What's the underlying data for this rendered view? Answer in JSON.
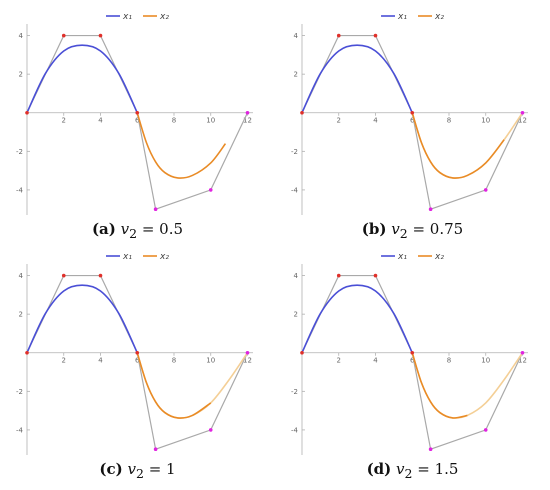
{
  "legend": {
    "x1": "x₁",
    "x2": "x₂"
  },
  "colors": {
    "x1": "#4a4fd6",
    "x2": "#e98b26",
    "x2_faded": "#f4cf96",
    "polygon": "#a9a9a9",
    "red_point": "#e0302a",
    "magenta_point": "#e024e0"
  },
  "captions": [
    {
      "label": "(a)",
      "var": "v",
      "sub": "2",
      "rhs": " = 0.5"
    },
    {
      "label": "(b)",
      "var": "v",
      "sub": "2",
      "rhs": " = 0.75"
    },
    {
      "label": "(c)",
      "var": "v",
      "sub": "2",
      "rhs": " = 1"
    },
    {
      "label": "(d)",
      "var": "v",
      "sub": "2",
      "rhs": " = 1.5"
    }
  ],
  "chart_data": [
    {
      "type": "line",
      "panel": "a",
      "v2": 0.5,
      "xlim": [
        0,
        12.3
      ],
      "ylim": [
        -5.3,
        4.6
      ],
      "xticks": [
        2,
        4,
        6,
        8,
        10,
        12
      ],
      "yticks": [
        -4,
        -2,
        2,
        4
      ],
      "control_polygon_1": [
        [
          0,
          0
        ],
        [
          2,
          4
        ],
        [
          4,
          4
        ],
        [
          6,
          0
        ]
      ],
      "control_polygon_2": [
        [
          6,
          0
        ],
        [
          7,
          -5
        ],
        [
          10,
          -4
        ],
        [
          12,
          0
        ]
      ],
      "series": [
        {
          "name": "x₁",
          "points": [
            [
              0,
              0
            ],
            [
              1,
              2.03
            ],
            [
              2,
              3.2
            ],
            [
              3,
              3.5
            ],
            [
              4,
              3.2
            ],
            [
              5,
              2.03
            ],
            [
              6,
              0
            ]
          ]
        },
        {
          "name": "x₂",
          "points": [
            [
              6,
              0
            ],
            [
              6.5,
              -1.55
            ],
            [
              7,
              -2.55
            ],
            [
              7.5,
              -3.1
            ],
            [
              8.2,
              -3.38
            ],
            [
              9,
              -3.25
            ],
            [
              10,
              -2.6
            ],
            [
              10.8,
              -1.6
            ]
          ]
        }
      ]
    },
    {
      "type": "line",
      "panel": "b",
      "v2": 0.75,
      "xlim": [
        0,
        12.3
      ],
      "ylim": [
        -5.3,
        4.6
      ],
      "xticks": [
        2,
        4,
        6,
        8,
        10,
        12
      ],
      "yticks": [
        -4,
        -2,
        2,
        4
      ],
      "control_polygon_1": [
        [
          0,
          0
        ],
        [
          2,
          4
        ],
        [
          4,
          4
        ],
        [
          6,
          0
        ]
      ],
      "control_polygon_2": [
        [
          6,
          0
        ],
        [
          7,
          -5
        ],
        [
          10,
          -4
        ],
        [
          12,
          0
        ]
      ],
      "series": [
        {
          "name": "x₁",
          "points": [
            [
              0,
              0
            ],
            [
              1,
              2.03
            ],
            [
              2,
              3.2
            ],
            [
              3,
              3.5
            ],
            [
              4,
              3.2
            ],
            [
              5,
              2.03
            ],
            [
              6,
              0
            ]
          ]
        },
        {
          "name": "x₂",
          "points": [
            [
              6,
              0
            ],
            [
              6.5,
              -1.55
            ],
            [
              7,
              -2.55
            ],
            [
              7.5,
              -3.1
            ],
            [
              8.2,
              -3.38
            ],
            [
              9,
              -3.25
            ],
            [
              10,
              -2.6
            ],
            [
              11,
              -1.4
            ],
            [
              12,
              0
            ]
          ]
        }
      ]
    },
    {
      "type": "line",
      "panel": "c",
      "v2": 1,
      "xlim": [
        0,
        12.3
      ],
      "ylim": [
        -5.3,
        4.6
      ],
      "xticks": [
        2,
        4,
        6,
        8,
        10,
        12
      ],
      "yticks": [
        -4,
        -2,
        2,
        4
      ],
      "control_polygon_1": [
        [
          0,
          0
        ],
        [
          2,
          4
        ],
        [
          4,
          4
        ],
        [
          6,
          0
        ]
      ],
      "control_polygon_2": [
        [
          6,
          0
        ],
        [
          7,
          -5
        ],
        [
          10,
          -4
        ],
        [
          12,
          0
        ]
      ],
      "series": [
        {
          "name": "x₁",
          "points": [
            [
              0,
              0
            ],
            [
              1,
              2.03
            ],
            [
              2,
              3.2
            ],
            [
              3,
              3.5
            ],
            [
              4,
              3.2
            ],
            [
              5,
              2.03
            ],
            [
              6,
              0
            ]
          ]
        },
        {
          "name": "x₂",
          "points": [
            [
              6,
              0
            ],
            [
              6.5,
              -1.55
            ],
            [
              7,
              -2.55
            ],
            [
              7.5,
              -3.1
            ],
            [
              8.2,
              -3.38
            ],
            [
              9,
              -3.25
            ],
            [
              10,
              -2.6
            ],
            [
              11,
              -1.4
            ],
            [
              12,
              0
            ]
          ]
        }
      ]
    },
    {
      "type": "line",
      "panel": "d",
      "v2": 1.5,
      "xlim": [
        0,
        12.3
      ],
      "ylim": [
        -5.3,
        4.6
      ],
      "xticks": [
        2,
        4,
        6,
        8,
        10,
        12
      ],
      "yticks": [
        -4,
        -2,
        2,
        4
      ],
      "control_polygon_1": [
        [
          0,
          0
        ],
        [
          2,
          4
        ],
        [
          4,
          4
        ],
        [
          6,
          0
        ]
      ],
      "control_polygon_2": [
        [
          6,
          0
        ],
        [
          7,
          -5
        ],
        [
          10,
          -4
        ],
        [
          12,
          0
        ]
      ],
      "series": [
        {
          "name": "x₁",
          "points": [
            [
              0,
              0
            ],
            [
              1,
              2.03
            ],
            [
              2,
              3.2
            ],
            [
              3,
              3.5
            ],
            [
              4,
              3.2
            ],
            [
              5,
              2.03
            ],
            [
              6,
              0
            ]
          ]
        },
        {
          "name": "x₂",
          "points": [
            [
              6,
              0
            ],
            [
              6.5,
              -1.55
            ],
            [
              7,
              -2.55
            ],
            [
              7.5,
              -3.1
            ],
            [
              8.2,
              -3.38
            ],
            [
              9,
              -3.25
            ],
            [
              10,
              -2.6
            ],
            [
              11,
              -1.4
            ],
            [
              12,
              0
            ]
          ]
        }
      ]
    }
  ]
}
